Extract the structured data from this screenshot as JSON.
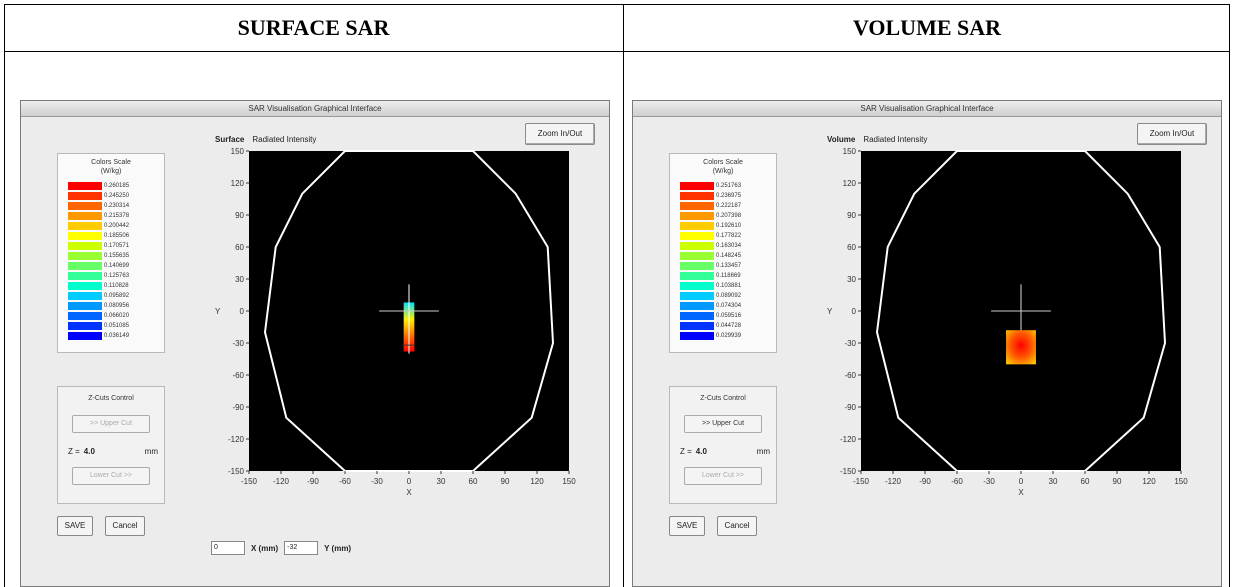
{
  "headers": {
    "left": "SURFACE SAR",
    "right": "VOLUME SAR"
  },
  "panels": [
    {
      "window_title": "SAR Visualisation Graphical Interface",
      "mode_label": "Surface",
      "mode_value": "Radiated Intensity",
      "zoom_label": "Zoom In/Out",
      "colorscale_title": "Colors Scale",
      "colorscale_unit": "(W/kg)",
      "colorscale_values": [
        "0.260185",
        "0.245250",
        "0.230314",
        "0.215378",
        "0.200442",
        "0.185506",
        "0.170571",
        "0.155635",
        "0.140699",
        "0.125763",
        "0.110828",
        "0.095892",
        "0.080956",
        "0.066020",
        "0.051085",
        "0.036149"
      ],
      "zcut_title": "Z-Cuts Control",
      "upper_cut_label": ">> Upper Cut",
      "lower_cut_label": "Lower Cut >>",
      "z_prefix": "Z =",
      "z_value": "4.0",
      "z_unit": "mm",
      "save_label": "SAVE",
      "cancel_label": "Cancel",
      "x_field": "0",
      "x_label": "X (mm)",
      "y_field": "-32",
      "y_label": "Y (mm)",
      "x_axis_label": "X",
      "y_axis_label": "Y",
      "upper_cut_enabled": false,
      "hotspot": "vertical"
    },
    {
      "window_title": "SAR Visualisation Graphical Interface",
      "mode_label": "Volume",
      "mode_value": "Radiated Intensity",
      "zoom_label": "Zoom In/Out",
      "colorscale_title": "Colors Scale",
      "colorscale_unit": "(W/kg)",
      "colorscale_values": [
        "0.251763",
        "0.236975",
        "0.222187",
        "0.207398",
        "0.192610",
        "0.177822",
        "0.163034",
        "0.148245",
        "0.133457",
        "0.118669",
        "0.103881",
        "0.089092",
        "0.074304",
        "0.059516",
        "0.044728",
        "0.029939"
      ],
      "zcut_title": "Z-Cuts Control",
      "upper_cut_label": ">> Upper Cut",
      "lower_cut_label": "Lower Cut >>",
      "z_prefix": "Z =",
      "z_value": "4.0",
      "z_unit": "mm",
      "save_label": "SAVE",
      "cancel_label": "Cancel",
      "x_axis_label": "X",
      "y_axis_label": "Y",
      "upper_cut_enabled": true,
      "hotspot": "square"
    }
  ],
  "axis_ticks": [
    "-150",
    "-120",
    "-90",
    "-60",
    "-30",
    "0",
    "30",
    "60",
    "90",
    "120",
    "150"
  ],
  "colors": [
    "#ff0000",
    "#ff3300",
    "#ff6600",
    "#ff9900",
    "#ffcc00",
    "#ffff00",
    "#ccff00",
    "#99ff33",
    "#66ff66",
    "#33ff99",
    "#00ffcc",
    "#00ccff",
    "#0099ff",
    "#0066ff",
    "#0033ff",
    "#0000ff"
  ]
}
